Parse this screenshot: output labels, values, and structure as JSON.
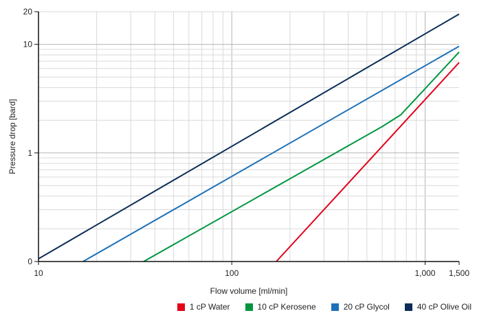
{
  "chart_data": {
    "type": "line",
    "xlabel": "Flow volume [ml/min]",
    "ylabel": "Pressure drop [bard]",
    "x_scale": "log",
    "y_scale": "log",
    "xlim": [
      10,
      1500
    ],
    "ylim": [
      0.1,
      20
    ],
    "x_ticks": [
      {
        "value": 10,
        "label": "10"
      },
      {
        "value": 100,
        "label": "100"
      },
      {
        "value": 1000,
        "label": "1,000"
      },
      {
        "value": 1500,
        "label": "1,500"
      }
    ],
    "y_ticks": [
      {
        "value": 0.1,
        "label": "0"
      },
      {
        "value": 1,
        "label": "1"
      },
      {
        "value": 10,
        "label": "10"
      },
      {
        "value": 20,
        "label": "20"
      }
    ],
    "grid": true,
    "legend_position": "bottom-right",
    "series": [
      {
        "name": "1 cP Water",
        "color": "#e2001a",
        "points": [
          [
            170,
            0.1
          ],
          [
            1500,
            6.8
          ]
        ]
      },
      {
        "name": "10 cP Kerosene",
        "color": "#009640",
        "points": [
          [
            35,
            0.1
          ],
          [
            600,
            1.75
          ],
          [
            750,
            2.25
          ],
          [
            1500,
            8.5
          ]
        ]
      },
      {
        "name": "20 cP Glycol",
        "color": "#1d71b8",
        "points": [
          [
            17,
            0.1
          ],
          [
            1500,
            9.6
          ]
        ]
      },
      {
        "name": "40 cP Olive Oil",
        "color": "#0b2d57",
        "points": [
          [
            10,
            0.106
          ],
          [
            1500,
            19.0
          ]
        ]
      }
    ]
  }
}
